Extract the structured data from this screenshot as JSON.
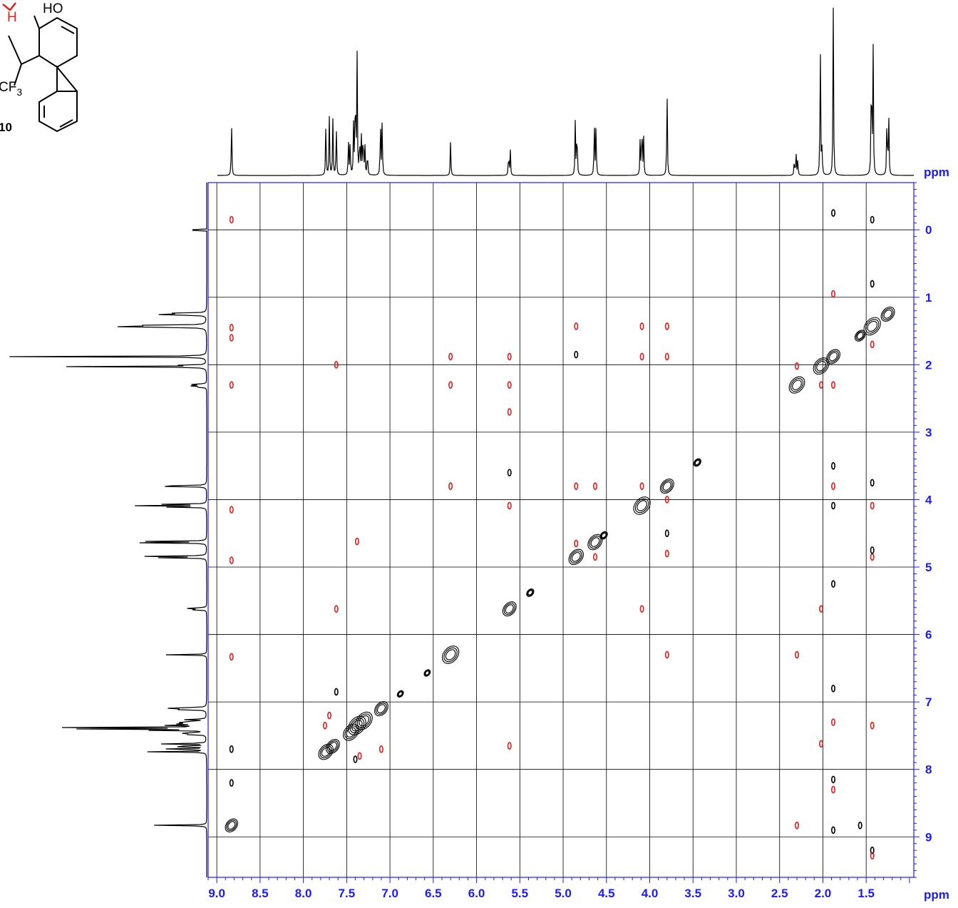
{
  "molecule": {
    "hydroxyl_label": "HO",
    "hydrogen_label": "H",
    "cf3_label": "CF",
    "cf3_subscript": "3",
    "compound_number": "10"
  },
  "chart_data": {
    "type": "heatmap",
    "subtype": "2D NMR correlation contour plot (ppm vs ppm)",
    "x_axis": {
      "unit": "ppm",
      "range": [
        9.1,
        0.95
      ],
      "ticks": [
        9.0,
        8.5,
        8.0,
        7.5,
        7.0,
        6.5,
        6.0,
        5.5,
        5.0,
        4.5,
        4.0,
        3.5,
        3.0,
        2.5,
        2.0,
        1.5
      ],
      "tick_labels": [
        "9.0",
        "8.5",
        "8.0",
        "7.5",
        "7.0",
        "6.5",
        "6.0",
        "5.5",
        "5.0",
        "4.5",
        "4.0",
        "3.5",
        "3.0",
        "2.5",
        "2.0",
        "1.5"
      ]
    },
    "y_axis": {
      "unit": "ppm",
      "range": [
        -0.7,
        9.6
      ],
      "ticks": [
        0,
        1,
        2,
        3,
        4,
        5,
        6,
        7,
        8,
        9
      ],
      "tick_labels": [
        "0",
        "1",
        "2",
        "3",
        "4",
        "5",
        "6",
        "7",
        "8",
        "9"
      ]
    },
    "grid": true,
    "colors": {
      "positive": "#000000",
      "negative": "#e0201b",
      "axis": "#1a1aff",
      "grid": "#000000"
    },
    "projection_peaks": [
      {
        "ppm": 8.83,
        "h": 0.33
      },
      {
        "ppm": 7.74,
        "h": 0.32
      },
      {
        "ppm": 7.7,
        "h": 0.35
      },
      {
        "ppm": 7.66,
        "h": 0.34
      },
      {
        "ppm": 7.62,
        "h": 0.31
      },
      {
        "ppm": 7.48,
        "h": 0.22
      },
      {
        "ppm": 7.46,
        "h": 0.2
      },
      {
        "ppm": 7.42,
        "h": 0.3
      },
      {
        "ppm": 7.4,
        "h": 0.62
      },
      {
        "ppm": 7.38,
        "h": 0.72
      },
      {
        "ppm": 7.35,
        "h": 0.25
      },
      {
        "ppm": 7.33,
        "h": 0.22
      },
      {
        "ppm": 7.31,
        "h": 0.28
      },
      {
        "ppm": 7.29,
        "h": 0.18
      },
      {
        "ppm": 7.26,
        "h": 0.16
      },
      {
        "ppm": 7.11,
        "h": 0.34
      },
      {
        "ppm": 7.09,
        "h": 0.33
      },
      {
        "ppm": 6.3,
        "h": 0.21
      },
      {
        "ppm": 5.63,
        "h": 0.15
      },
      {
        "ppm": 5.61,
        "h": 0.15
      },
      {
        "ppm": 4.86,
        "h": 0.32
      },
      {
        "ppm": 4.84,
        "h": 0.33
      },
      {
        "ppm": 4.64,
        "h": 0.33
      },
      {
        "ppm": 4.62,
        "h": 0.31
      },
      {
        "ppm": 4.11,
        "h": 0.22
      },
      {
        "ppm": 4.09,
        "h": 0.35
      },
      {
        "ppm": 4.07,
        "h": 0.22
      },
      {
        "ppm": 3.8,
        "h": 0.53
      },
      {
        "ppm": 2.33,
        "h": 0.1
      },
      {
        "ppm": 2.31,
        "h": 0.14
      },
      {
        "ppm": 2.29,
        "h": 0.1
      },
      {
        "ppm": 2.03,
        "h": 0.82
      },
      {
        "ppm": 2.01,
        "h": 0.18
      },
      {
        "ppm": 1.88,
        "h": 1.0
      },
      {
        "ppm": 1.44,
        "h": 0.78
      },
      {
        "ppm": 1.42,
        "h": 0.78
      },
      {
        "ppm": 1.26,
        "h": 0.4
      },
      {
        "ppm": 1.24,
        "h": 0.4
      },
      {
        "ppm": 0.0,
        "h": 0.0
      }
    ],
    "diagonal_peaks": [
      {
        "x": 8.83,
        "y": 8.83,
        "s": 1.2
      },
      {
        "x": 7.74,
        "y": 7.74,
        "s": 1.4
      },
      {
        "x": 7.66,
        "y": 7.66,
        "s": 1.3
      },
      {
        "x": 7.45,
        "y": 7.45,
        "s": 1.5
      },
      {
        "x": 7.38,
        "y": 7.35,
        "s": 1.7
      },
      {
        "x": 7.3,
        "y": 7.28,
        "s": 1.6
      },
      {
        "x": 7.1,
        "y": 7.1,
        "s": 1.3
      },
      {
        "x": 6.88,
        "y": 6.88,
        "s": 0.6
      },
      {
        "x": 6.57,
        "y": 6.57,
        "s": 0.6
      },
      {
        "x": 6.3,
        "y": 6.3,
        "s": 1.6
      },
      {
        "x": 5.62,
        "y": 5.62,
        "s": 1.3
      },
      {
        "x": 5.38,
        "y": 5.38,
        "s": 0.7
      },
      {
        "x": 4.85,
        "y": 4.85,
        "s": 1.4
      },
      {
        "x": 4.63,
        "y": 4.63,
        "s": 1.4
      },
      {
        "x": 4.53,
        "y": 4.53,
        "s": 0.7
      },
      {
        "x": 4.09,
        "y": 4.09,
        "s": 1.6
      },
      {
        "x": 3.8,
        "y": 3.8,
        "s": 1.3
      },
      {
        "x": 3.45,
        "y": 3.45,
        "s": 0.7
      },
      {
        "x": 2.3,
        "y": 2.3,
        "s": 1.5
      },
      {
        "x": 2.02,
        "y": 2.02,
        "s": 1.5
      },
      {
        "x": 1.88,
        "y": 1.88,
        "s": 1.3
      },
      {
        "x": 1.57,
        "y": 1.57,
        "s": 1.0
      },
      {
        "x": 1.43,
        "y": 1.43,
        "s": 1.6
      },
      {
        "x": 1.25,
        "y": 1.25,
        "s": 1.3
      }
    ],
    "cross_peaks": [
      {
        "x": 8.83,
        "y": 2.3,
        "c": "neg"
      },
      {
        "x": 8.83,
        "y": 1.45,
        "c": "neg"
      },
      {
        "x": 8.83,
        "y": 1.6,
        "c": "neg"
      },
      {
        "x": 8.83,
        "y": 4.9,
        "c": "neg"
      },
      {
        "x": 8.83,
        "y": 4.15,
        "c": "neg"
      },
      {
        "x": 8.83,
        "y": 6.33,
        "c": "neg"
      },
      {
        "x": 8.83,
        "y": -0.15,
        "c": "neg"
      },
      {
        "x": 8.83,
        "y": 7.7,
        "c": "pos"
      },
      {
        "x": 8.83,
        "y": 8.2,
        "c": "pos"
      },
      {
        "x": 7.62,
        "y": 5.62,
        "c": "neg"
      },
      {
        "x": 7.62,
        "y": 2.0,
        "c": "neg"
      },
      {
        "x": 7.62,
        "y": 6.85,
        "c": "pos"
      },
      {
        "x": 7.75,
        "y": 7.35,
        "c": "neg"
      },
      {
        "x": 7.7,
        "y": 7.2,
        "c": "neg"
      },
      {
        "x": 7.38,
        "y": 4.62,
        "c": "neg"
      },
      {
        "x": 7.4,
        "y": 7.85,
        "c": "pos"
      },
      {
        "x": 7.35,
        "y": 7.8,
        "c": "neg"
      },
      {
        "x": 7.1,
        "y": 7.7,
        "c": "neg"
      },
      {
        "x": 6.3,
        "y": 1.88,
        "c": "neg"
      },
      {
        "x": 6.3,
        "y": 2.3,
        "c": "neg"
      },
      {
        "x": 6.3,
        "y": 3.8,
        "c": "neg"
      },
      {
        "x": 5.62,
        "y": 1.88,
        "c": "neg"
      },
      {
        "x": 5.62,
        "y": 2.3,
        "c": "neg"
      },
      {
        "x": 5.62,
        "y": 2.7,
        "c": "neg"
      },
      {
        "x": 5.62,
        "y": 4.09,
        "c": "neg"
      },
      {
        "x": 5.62,
        "y": 7.65,
        "c": "neg"
      },
      {
        "x": 5.62,
        "y": 3.6,
        "c": "pos"
      },
      {
        "x": 4.85,
        "y": 1.43,
        "c": "neg"
      },
      {
        "x": 4.85,
        "y": 3.8,
        "c": "neg"
      },
      {
        "x": 4.85,
        "y": 4.65,
        "c": "neg"
      },
      {
        "x": 4.63,
        "y": 3.8,
        "c": "neg"
      },
      {
        "x": 4.63,
        "y": 4.85,
        "c": "neg"
      },
      {
        "x": 4.85,
        "y": 1.85,
        "c": "pos"
      },
      {
        "x": 4.09,
        "y": 1.43,
        "c": "neg"
      },
      {
        "x": 4.09,
        "y": 1.88,
        "c": "neg"
      },
      {
        "x": 4.09,
        "y": 3.8,
        "c": "neg"
      },
      {
        "x": 4.09,
        "y": 5.62,
        "c": "neg"
      },
      {
        "x": 3.8,
        "y": 1.43,
        "c": "neg"
      },
      {
        "x": 3.8,
        "y": 1.88,
        "c": "neg"
      },
      {
        "x": 3.8,
        "y": 4.0,
        "c": "neg"
      },
      {
        "x": 3.8,
        "y": 4.8,
        "c": "neg"
      },
      {
        "x": 3.8,
        "y": 6.3,
        "c": "neg"
      },
      {
        "x": 3.8,
        "y": 4.5,
        "c": "pos"
      },
      {
        "x": 2.3,
        "y": 6.3,
        "c": "neg"
      },
      {
        "x": 2.3,
        "y": 8.83,
        "c": "neg"
      },
      {
        "x": 2.3,
        "y": 2.02,
        "c": "neg"
      },
      {
        "x": 2.02,
        "y": 2.3,
        "c": "neg"
      },
      {
        "x": 2.02,
        "y": 5.62,
        "c": "neg"
      },
      {
        "x": 2.02,
        "y": 7.62,
        "c": "neg"
      },
      {
        "x": 1.88,
        "y": 2.3,
        "c": "neg"
      },
      {
        "x": 1.88,
        "y": 3.8,
        "c": "neg"
      },
      {
        "x": 1.88,
        "y": 7.3,
        "c": "neg"
      },
      {
        "x": 1.88,
        "y": 8.3,
        "c": "neg"
      },
      {
        "x": 1.88,
        "y": 0.95,
        "c": "neg"
      },
      {
        "x": 1.88,
        "y": 3.5,
        "c": "pos"
      },
      {
        "x": 1.88,
        "y": 4.09,
        "c": "pos"
      },
      {
        "x": 1.88,
        "y": 5.25,
        "c": "pos"
      },
      {
        "x": 1.88,
        "y": 6.8,
        "c": "pos"
      },
      {
        "x": 1.88,
        "y": 8.15,
        "c": "pos"
      },
      {
        "x": 1.88,
        "y": 8.9,
        "c": "pos"
      },
      {
        "x": 1.88,
        "y": -0.25,
        "c": "pos"
      },
      {
        "x": 1.57,
        "y": 8.83,
        "c": "pos"
      },
      {
        "x": 1.43,
        "y": 1.7,
        "c": "neg"
      },
      {
        "x": 1.43,
        "y": 4.09,
        "c": "neg"
      },
      {
        "x": 1.43,
        "y": 4.85,
        "c": "neg"
      },
      {
        "x": 1.43,
        "y": 0.8,
        "c": "pos"
      },
      {
        "x": 1.43,
        "y": 3.75,
        "c": "pos"
      },
      {
        "x": 1.43,
        "y": 4.75,
        "c": "pos"
      },
      {
        "x": 1.43,
        "y": 9.2,
        "c": "pos"
      },
      {
        "x": 1.43,
        "y": -0.15,
        "c": "pos"
      },
      {
        "x": 1.43,
        "y": 7.35,
        "c": "neg"
      },
      {
        "x": 1.43,
        "y": 9.28,
        "c": "neg"
      }
    ]
  }
}
